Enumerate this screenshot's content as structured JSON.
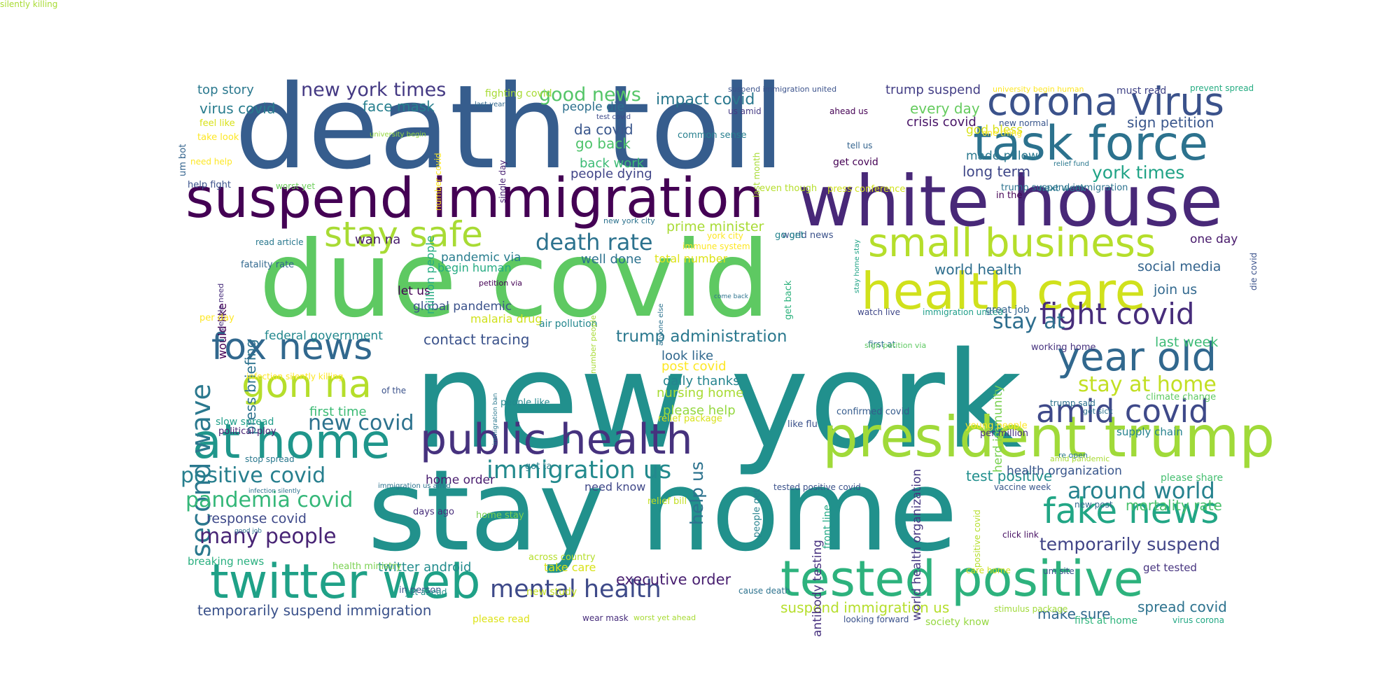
{
  "words": [
    {
      "text": "new york",
      "color": "#21908d"
    },
    {
      "text": "stay home",
      "color": "#21918c"
    },
    {
      "text": "death toll",
      "color": "#365d8d"
    },
    {
      "text": "due covid",
      "color": "#5ec962"
    },
    {
      "text": "white house",
      "color": "#482878"
    },
    {
      "text": "suspend immigration",
      "color": "#440154"
    },
    {
      "text": "president trump",
      "color": "#a0da39"
    },
    {
      "text": "tested positive",
      "color": "#2db27d"
    },
    {
      "text": "corona virus",
      "color": "#3b528b"
    },
    {
      "text": "task force",
      "color": "#2c728e"
    },
    {
      "text": "public health",
      "color": "#46327e"
    },
    {
      "text": "at home",
      "color": "#1f968b"
    },
    {
      "text": "twitter web",
      "color": "#1fa187"
    },
    {
      "text": "health care",
      "color": "#d0e11c"
    },
    {
      "text": "small business",
      "color": "#b5de2b"
    },
    {
      "text": "fake news",
      "color": "#21a685"
    },
    {
      "text": "year old",
      "color": "#31688e"
    },
    {
      "text": "fox news",
      "color": "#31688e"
    },
    {
      "text": "gon na",
      "color": "#b5de2b"
    },
    {
      "text": "stay safe",
      "color": "#a8db34"
    },
    {
      "text": "amid covid",
      "color": "#3e4989"
    },
    {
      "text": "fight covid",
      "color": "#472d7b"
    },
    {
      "text": "mental health",
      "color": "#3e4a89"
    },
    {
      "text": "second wave",
      "color": "#2a788e"
    },
    {
      "text": "immigration us",
      "color": "#238a8d"
    },
    {
      "text": "positive covid",
      "color": "#277f8e"
    },
    {
      "text": "pandemia covid",
      "color": "#35b779"
    },
    {
      "text": "many people",
      "color": "#482475"
    },
    {
      "text": "around world",
      "color": "#26828e"
    },
    {
      "text": "new york times",
      "color": "#443983"
    },
    {
      "text": "new covid",
      "color": "#2c728e"
    },
    {
      "text": "stay at",
      "color": "#2e6e8e"
    },
    {
      "text": "stay at home",
      "color": "#c2df23"
    },
    {
      "text": "temporarily suspend",
      "color": "#414487"
    },
    {
      "text": "death rate",
      "color": "#2c728e"
    },
    {
      "text": "good news",
      "color": "#54c568"
    },
    {
      "text": "york times",
      "color": "#20a386"
    },
    {
      "text": "trump administration",
      "color": "#2a788e"
    },
    {
      "text": "help us",
      "color": "#2c728e"
    },
    {
      "text": "mortality rate",
      "color": "#4ac16d"
    },
    {
      "text": "test positive",
      "color": "#218f8d"
    },
    {
      "text": "temporarily suspend immigration",
      "color": "#3b528b"
    },
    {
      "text": "suspend immigration us",
      "color": "#b5de2b"
    },
    {
      "text": "make sure",
      "color": "#31688e"
    },
    {
      "text": "spread covid",
      "color": "#2c728e"
    },
    {
      "text": "executive order",
      "color": "#481f70"
    },
    {
      "text": "twitter android",
      "color": "#228c8d"
    },
    {
      "text": "contact tracing",
      "color": "#3b528b"
    },
    {
      "text": "impact covid",
      "color": "#2a788e"
    },
    {
      "text": "face mask",
      "color": "#277f8e"
    },
    {
      "text": "virus covid",
      "color": "#287c8e"
    },
    {
      "text": "crisis covid",
      "color": "#481467"
    },
    {
      "text": "sign petition",
      "color": "#39568c"
    },
    {
      "text": "long term",
      "color": "#3f4788"
    },
    {
      "text": "every day",
      "color": "#65cb5e"
    },
    {
      "text": "trump suspend",
      "color": "#433e85"
    },
    {
      "text": "top story",
      "color": "#2a788e"
    },
    {
      "text": "response covid",
      "color": "#3e4989"
    },
    {
      "text": "breaking news",
      "color": "#29af7f"
    },
    {
      "text": "federal government",
      "color": "#23888e"
    },
    {
      "text": "press briefing",
      "color": "#2c728e"
    },
    {
      "text": "would like",
      "color": "#440154"
    },
    {
      "text": "first time",
      "color": "#3cbb75"
    },
    {
      "text": "look like",
      "color": "#31688e"
    },
    {
      "text": "daily thanks",
      "color": "#25848e"
    },
    {
      "text": "nursing home",
      "color": "#a8db34"
    },
    {
      "text": "please help",
      "color": "#95d840"
    },
    {
      "text": "post covid",
      "color": "#fde725"
    },
    {
      "text": "prime minister",
      "color": "#a8db34"
    },
    {
      "text": "world health",
      "color": "#2e6e8e"
    },
    {
      "text": "social media",
      "color": "#33638d"
    },
    {
      "text": "join us",
      "color": "#31688e"
    },
    {
      "text": "one day",
      "color": "#481a6c"
    },
    {
      "text": "last week",
      "color": "#3cbb75"
    },
    {
      "text": "well done",
      "color": "#2c728e"
    },
    {
      "text": "total number",
      "color": "#dde318"
    },
    {
      "text": "global pandemic",
      "color": "#3b528b"
    },
    {
      "text": "let us",
      "color": "#440154"
    },
    {
      "text": "malaria drug",
      "color": "#d0e11c"
    },
    {
      "text": "begin human",
      "color": "#25ab82"
    },
    {
      "text": "pandemic via",
      "color": "#287d8e"
    },
    {
      "text": "wan na",
      "color": "#481b6d"
    },
    {
      "text": "people dying",
      "color": "#404588"
    },
    {
      "text": "back work",
      "color": "#3cbb75"
    },
    {
      "text": "go back",
      "color": "#4ec36b"
    },
    {
      "text": "da covid",
      "color": "#39568c"
    },
    {
      "text": "people die",
      "color": "#2d708e"
    },
    {
      "text": "god bless",
      "color": "#d8e219"
    },
    {
      "text": "made pillow",
      "color": "#2a788e"
    },
    {
      "text": "health organization",
      "color": "#39568c"
    },
    {
      "text": "world health organization",
      "color": "#453781"
    },
    {
      "text": "herd immunity",
      "color": "#7ad151"
    },
    {
      "text": "front line",
      "color": "#22a884"
    },
    {
      "text": "antibody testing",
      "color": "#46307e"
    },
    {
      "text": "need know",
      "color": "#3f4788"
    },
    {
      "text": "home order",
      "color": "#481c6e"
    },
    {
      "text": "take care",
      "color": "#d8e219"
    },
    {
      "text": "million people",
      "color": "#25ac82"
    },
    {
      "text": "get back",
      "color": "#2db27d"
    },
    {
      "text": "working home",
      "color": "#46327e"
    },
    {
      "text": "climate change",
      "color": "#5ec962"
    },
    {
      "text": "trump said",
      "color": "#2d718e"
    },
    {
      "text": "per million",
      "color": "#472f7d"
    },
    {
      "text": "supply chain",
      "color": "#26828e"
    },
    {
      "text": "please share",
      "color": "#45bf70"
    },
    {
      "text": "get tested",
      "color": "#46337f"
    },
    {
      "text": "watch live",
      "color": "#3f4788"
    },
    {
      "text": "immigration united",
      "color": "#1f9e89"
    },
    {
      "text": "first at",
      "color": "#2d718e"
    },
    {
      "text": "great job",
      "color": "#33638d"
    },
    {
      "text": "new post",
      "color": "#31688e"
    },
    {
      "text": "vaccine week",
      "color": "#39568c"
    },
    {
      "text": "society know",
      "color": "#95d840"
    },
    {
      "text": "first at home",
      "color": "#2fb47c"
    },
    {
      "text": "virus corona",
      "color": "#22a884"
    },
    {
      "text": "confirmed covid",
      "color": "#365c8d"
    },
    {
      "text": "new york city",
      "color": "#2c728e"
    },
    {
      "text": "air pollution",
      "color": "#24878e"
    },
    {
      "text": "people like",
      "color": "#23898e"
    },
    {
      "text": "slow spread",
      "color": "#1f9e89"
    },
    {
      "text": "political ploy",
      "color": "#482173"
    },
    {
      "text": "stop spread",
      "color": "#2a788e"
    },
    {
      "text": "days ago",
      "color": "#472d7b"
    },
    {
      "text": "home stay",
      "color": "#7ad151"
    },
    {
      "text": "health ministry",
      "color": "#7ad151"
    },
    {
      "text": "across country",
      "color": "#b5de2b"
    },
    {
      "text": "new study",
      "color": "#c2df23"
    },
    {
      "text": "in person",
      "color": "#3b528b"
    },
    {
      "text": "please read",
      "color": "#dde318"
    },
    {
      "text": "yet ahead",
      "color": "#21918c"
    },
    {
      "text": "cause death",
      "color": "#2c728e"
    },
    {
      "text": "wear mask",
      "color": "#472d7b"
    },
    {
      "text": "worst yet ahead",
      "color": "#a8db34"
    },
    {
      "text": "looking forward",
      "color": "#3b528b"
    },
    {
      "text": "stimulus package",
      "color": "#a0da39"
    },
    {
      "text": "um site",
      "color": "#3b528b"
    },
    {
      "text": "care home",
      "color": "#d0e11c"
    },
    {
      "text": "click link",
      "color": "#471063"
    },
    {
      "text": "immune system",
      "color": "#fde725"
    },
    {
      "text": "york city",
      "color": "#fde725"
    },
    {
      "text": "world news",
      "color": "#3b528b"
    },
    {
      "text": "go get",
      "color": "#25848e"
    },
    {
      "text": "even though",
      "color": "#b5de2b"
    },
    {
      "text": "press conference",
      "color": "#d0e11c"
    },
    {
      "text": "in the",
      "color": "#440154"
    },
    {
      "text": "trump suspend immigration",
      "color": "#2c728e"
    },
    {
      "text": "next week",
      "color": "#2a788e"
    },
    {
      "text": "relief fund",
      "color": "#2a788e"
    },
    {
      "text": "last month",
      "color": "#a8db34"
    },
    {
      "text": "tell us",
      "color": "#33638d"
    },
    {
      "text": "get covid",
      "color": "#440154"
    },
    {
      "text": "ahead us",
      "color": "#440154"
    },
    {
      "text": "us amid",
      "color": "#443983"
    },
    {
      "text": "common sense",
      "color": "#277f8e"
    },
    {
      "text": "single day",
      "color": "#482173"
    },
    {
      "text": "last year",
      "color": "#31688e"
    },
    {
      "text": "fighting covid",
      "color": "#a8db34"
    },
    {
      "text": "test covid",
      "color": "#3e4989"
    },
    {
      "text": "university begin",
      "color": "#95d840"
    },
    {
      "text": "number covid",
      "color": "#fde725"
    },
    {
      "text": "worst yet",
      "color": "#6ccd5a"
    },
    {
      "text": "help fight",
      "color": "#3b528b"
    },
    {
      "text": "need help",
      "color": "#fde725"
    },
    {
      "text": "um bot",
      "color": "#33638d"
    },
    {
      "text": "take look",
      "color": "#fde725"
    },
    {
      "text": "feel like",
      "color": "#d8e219"
    },
    {
      "text": "suspend immigration united",
      "color": "#3b528b"
    },
    {
      "text": "university begin human",
      "color": "#fde725"
    },
    {
      "text": "must read",
      "color": "#414487"
    },
    {
      "text": "prevent spread",
      "color": "#25ac82"
    },
    {
      "text": "one thing",
      "color": "#fde725"
    },
    {
      "text": "new normal",
      "color": "#39568c"
    },
    {
      "text": "read article",
      "color": "#2a788e"
    },
    {
      "text": "fatality rate",
      "color": "#31688e"
    },
    {
      "text": "people need",
      "color": "#472d7b"
    },
    {
      "text": "per day",
      "color": "#fde725"
    },
    {
      "text": "infection silently killing",
      "color": "#fde725"
    },
    {
      "text": "of the",
      "color": "#3b528b"
    },
    {
      "text": "petition via",
      "color": "#440154"
    },
    {
      "text": "number people",
      "color": "#a8db34"
    },
    {
      "text": "anyone else",
      "color": "#2c728e"
    },
    {
      "text": "come back",
      "color": "#2c728e"
    },
    {
      "text": "immigration ban",
      "color": "#2a788e"
    },
    {
      "text": "relief package",
      "color": "#d8e219"
    },
    {
      "text": "like flu",
      "color": "#3b528b"
    },
    {
      "text": "got ta",
      "color": "#26828e"
    },
    {
      "text": "relief bill",
      "color": "#c2df23"
    },
    {
      "text": "people get",
      "color": "#26828e"
    },
    {
      "text": "infection silently",
      "color": "#2c728e"
    },
    {
      "text": "immigration us amid",
      "color": "#2c728e"
    },
    {
      "text": "good job",
      "color": "#2c728e"
    },
    {
      "text": "stay home stay",
      "color": "#20a386"
    },
    {
      "text": "sign petition via",
      "color": "#5ec962"
    },
    {
      "text": "young people",
      "color": "#fde725"
    },
    {
      "text": "re open",
      "color": "#2a788e"
    },
    {
      "text": "positive covid",
      "color": "#b5de2b"
    },
    {
      "text": "tested positive covid",
      "color": "#3b528b"
    },
    {
      "text": "amid pandemic",
      "color": "#a8db34"
    },
    {
      "text": "get sick",
      "color": "#2c728e"
    },
    {
      "text": "die covid",
      "color": "#3b528b"
    },
    {
      "text": "silently killing",
      "color": "#a8db34"
    }
  ]
}
